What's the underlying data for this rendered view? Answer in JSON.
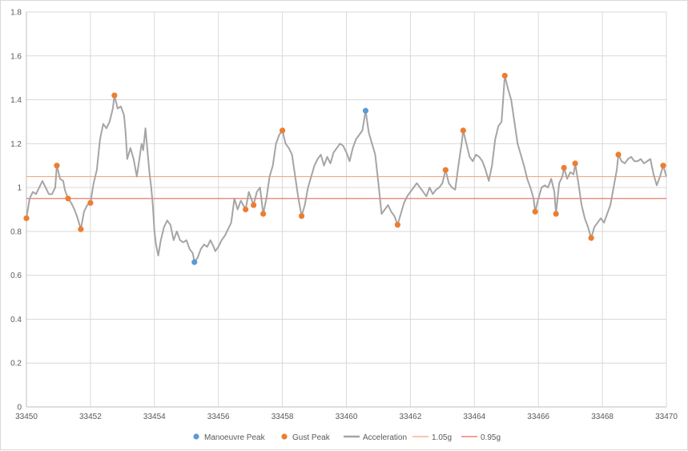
{
  "chart_data": {
    "type": "line",
    "xlim": [
      33450,
      33470
    ],
    "ylim": [
      0,
      1.8
    ],
    "x_ticks": [
      33450,
      33452,
      33454,
      33456,
      33458,
      33460,
      33462,
      33464,
      33466,
      33468,
      33470
    ],
    "x_tick_labels": [
      "33450",
      "33452",
      "33454",
      "33456",
      "33458",
      "33460",
      "33462",
      "33464",
      "33466",
      "33468",
      "33470"
    ],
    "y_ticks": [
      0,
      0.2,
      0.4,
      0.6,
      0.8,
      1,
      1.2,
      1.4,
      1.6,
      1.8
    ],
    "y_tick_labels": [
      "0",
      "0.2",
      "0.4",
      "0.6",
      "0.8",
      "1",
      "1.2",
      "1.4",
      "1.6",
      "1.8"
    ],
    "grid": true,
    "legend_position": "bottom",
    "series": [
      {
        "name": "Manoeuvre Peak",
        "kind": "scatter",
        "color": "#5b9bd5",
        "points": [
          [
            33455.25,
            0.66
          ],
          [
            33460.6,
            1.35
          ]
        ]
      },
      {
        "name": "Gust Peak",
        "kind": "scatter",
        "color": "#ed7d31",
        "points": [
          [
            33450,
            0.86
          ],
          [
            33450.95,
            1.1
          ],
          [
            33451.3,
            0.95
          ],
          [
            33451.7,
            0.81
          ],
          [
            33452.0,
            0.93
          ],
          [
            33452.75,
            1.42
          ],
          [
            33456.85,
            0.9
          ],
          [
            33457.1,
            0.92
          ],
          [
            33457.4,
            0.88
          ],
          [
            33458.0,
            1.26
          ],
          [
            33458.6,
            0.87
          ],
          [
            33461.6,
            0.83
          ],
          [
            33463.1,
            1.08
          ],
          [
            33463.65,
            1.26
          ],
          [
            33464.95,
            1.51
          ],
          [
            33465.9,
            0.89
          ],
          [
            33466.55,
            0.88
          ],
          [
            33466.8,
            1.09
          ],
          [
            33467.15,
            1.11
          ],
          [
            33467.65,
            0.77
          ],
          [
            33468.5,
            1.15
          ],
          [
            33469.9,
            1.1
          ]
        ]
      },
      {
        "name": "Acceleration",
        "kind": "line",
        "color": "#a5a5a5",
        "points": [
          [
            33450.0,
            0.86
          ],
          [
            33450.1,
            0.95
          ],
          [
            33450.2,
            0.98
          ],
          [
            33450.3,
            0.97
          ],
          [
            33450.4,
            1.0
          ],
          [
            33450.5,
            1.03
          ],
          [
            33450.6,
            1.0
          ],
          [
            33450.7,
            0.97
          ],
          [
            33450.8,
            0.97
          ],
          [
            33450.9,
            1.0
          ],
          [
            33450.95,
            1.1
          ],
          [
            33451.05,
            1.04
          ],
          [
            33451.15,
            1.03
          ],
          [
            33451.2,
            0.99
          ],
          [
            33451.3,
            0.95
          ],
          [
            33451.4,
            0.93
          ],
          [
            33451.5,
            0.9
          ],
          [
            33451.6,
            0.86
          ],
          [
            33451.7,
            0.81
          ],
          [
            33451.8,
            0.89
          ],
          [
            33451.9,
            0.92
          ],
          [
            33452.0,
            0.93
          ],
          [
            33452.1,
            1.02
          ],
          [
            33452.2,
            1.08
          ],
          [
            33452.3,
            1.22
          ],
          [
            33452.4,
            1.29
          ],
          [
            33452.5,
            1.27
          ],
          [
            33452.6,
            1.3
          ],
          [
            33452.7,
            1.36
          ],
          [
            33452.75,
            1.42
          ],
          [
            33452.85,
            1.36
          ],
          [
            33452.95,
            1.37
          ],
          [
            33453.05,
            1.33
          ],
          [
            33453.1,
            1.25
          ],
          [
            33453.15,
            1.13
          ],
          [
            33453.25,
            1.18
          ],
          [
            33453.35,
            1.13
          ],
          [
            33453.45,
            1.05
          ],
          [
            33453.55,
            1.15
          ],
          [
            33453.6,
            1.2
          ],
          [
            33453.65,
            1.17
          ],
          [
            33453.72,
            1.27
          ],
          [
            33453.8,
            1.14
          ],
          [
            33453.85,
            1.06
          ],
          [
            33453.9,
            1.0
          ],
          [
            33453.95,
            0.92
          ],
          [
            33454.0,
            0.8
          ],
          [
            33454.05,
            0.74
          ],
          [
            33454.12,
            0.69
          ],
          [
            33454.2,
            0.76
          ],
          [
            33454.3,
            0.82
          ],
          [
            33454.4,
            0.85
          ],
          [
            33454.5,
            0.83
          ],
          [
            33454.6,
            0.76
          ],
          [
            33454.7,
            0.8
          ],
          [
            33454.8,
            0.76
          ],
          [
            33454.9,
            0.75
          ],
          [
            33455.0,
            0.76
          ],
          [
            33455.1,
            0.72
          ],
          [
            33455.2,
            0.7
          ],
          [
            33455.25,
            0.66
          ],
          [
            33455.35,
            0.68
          ],
          [
            33455.45,
            0.72
          ],
          [
            33455.55,
            0.74
          ],
          [
            33455.65,
            0.73
          ],
          [
            33455.75,
            0.76
          ],
          [
            33455.85,
            0.73
          ],
          [
            33455.9,
            0.71
          ],
          [
            33456.0,
            0.73
          ],
          [
            33456.1,
            0.76
          ],
          [
            33456.2,
            0.78
          ],
          [
            33456.3,
            0.81
          ],
          [
            33456.4,
            0.84
          ],
          [
            33456.5,
            0.95
          ],
          [
            33456.6,
            0.9
          ],
          [
            33456.7,
            0.94
          ],
          [
            33456.85,
            0.9
          ],
          [
            33456.95,
            0.98
          ],
          [
            33457.1,
            0.92
          ],
          [
            33457.2,
            0.98
          ],
          [
            33457.3,
            1.0
          ],
          [
            33457.4,
            0.88
          ],
          [
            33457.5,
            0.95
          ],
          [
            33457.6,
            1.05
          ],
          [
            33457.7,
            1.1
          ],
          [
            33457.8,
            1.2
          ],
          [
            33457.9,
            1.24
          ],
          [
            33458.0,
            1.26
          ],
          [
            33458.1,
            1.2
          ],
          [
            33458.2,
            1.18
          ],
          [
            33458.3,
            1.15
          ],
          [
            33458.4,
            1.05
          ],
          [
            33458.5,
            0.95
          ],
          [
            33458.6,
            0.87
          ],
          [
            33458.7,
            0.92
          ],
          [
            33458.8,
            1.0
          ],
          [
            33458.9,
            1.05
          ],
          [
            33459.0,
            1.1
          ],
          [
            33459.1,
            1.13
          ],
          [
            33459.2,
            1.15
          ],
          [
            33459.3,
            1.1
          ],
          [
            33459.4,
            1.14
          ],
          [
            33459.5,
            1.11
          ],
          [
            33459.6,
            1.16
          ],
          [
            33459.7,
            1.18
          ],
          [
            33459.8,
            1.2
          ],
          [
            33459.9,
            1.19
          ],
          [
            33460.0,
            1.16
          ],
          [
            33460.1,
            1.12
          ],
          [
            33460.2,
            1.18
          ],
          [
            33460.3,
            1.22
          ],
          [
            33460.4,
            1.24
          ],
          [
            33460.5,
            1.26
          ],
          [
            33460.6,
            1.35
          ],
          [
            33460.7,
            1.25
          ],
          [
            33460.8,
            1.2
          ],
          [
            33460.9,
            1.15
          ],
          [
            33461.0,
            1.02
          ],
          [
            33461.1,
            0.88
          ],
          [
            33461.2,
            0.9
          ],
          [
            33461.3,
            0.92
          ],
          [
            33461.4,
            0.89
          ],
          [
            33461.5,
            0.87
          ],
          [
            33461.6,
            0.83
          ],
          [
            33461.7,
            0.88
          ],
          [
            33461.8,
            0.93
          ],
          [
            33461.9,
            0.96
          ],
          [
            33462.0,
            0.98
          ],
          [
            33462.1,
            1.0
          ],
          [
            33462.2,
            1.02
          ],
          [
            33462.3,
            1.0
          ],
          [
            33462.4,
            0.98
          ],
          [
            33462.5,
            0.96
          ],
          [
            33462.6,
            1.0
          ],
          [
            33462.7,
            0.97
          ],
          [
            33462.8,
            0.99
          ],
          [
            33462.9,
            1.0
          ],
          [
            33463.0,
            1.02
          ],
          [
            33463.1,
            1.08
          ],
          [
            33463.2,
            1.02
          ],
          [
            33463.3,
            1.0
          ],
          [
            33463.4,
            0.99
          ],
          [
            33463.5,
            1.1
          ],
          [
            33463.6,
            1.2
          ],
          [
            33463.65,
            1.26
          ],
          [
            33463.75,
            1.2
          ],
          [
            33463.85,
            1.14
          ],
          [
            33463.95,
            1.12
          ],
          [
            33464.05,
            1.15
          ],
          [
            33464.15,
            1.14
          ],
          [
            33464.25,
            1.12
          ],
          [
            33464.35,
            1.08
          ],
          [
            33464.45,
            1.03
          ],
          [
            33464.55,
            1.1
          ],
          [
            33464.65,
            1.22
          ],
          [
            33464.75,
            1.28
          ],
          [
            33464.85,
            1.3
          ],
          [
            33464.95,
            1.51
          ],
          [
            33465.05,
            1.45
          ],
          [
            33465.15,
            1.4
          ],
          [
            33465.25,
            1.3
          ],
          [
            33465.35,
            1.2
          ],
          [
            33465.45,
            1.15
          ],
          [
            33465.55,
            1.1
          ],
          [
            33465.65,
            1.04
          ],
          [
            33465.75,
            1.0
          ],
          [
            33465.85,
            0.95
          ],
          [
            33465.9,
            0.89
          ],
          [
            33466.0,
            0.95
          ],
          [
            33466.1,
            1.0
          ],
          [
            33466.2,
            1.01
          ],
          [
            33466.3,
            1.0
          ],
          [
            33466.4,
            1.04
          ],
          [
            33466.5,
            0.98
          ],
          [
            33466.55,
            0.88
          ],
          [
            33466.65,
            1.02
          ],
          [
            33466.75,
            1.05
          ],
          [
            33466.8,
            1.09
          ],
          [
            33466.9,
            1.04
          ],
          [
            33467.0,
            1.07
          ],
          [
            33467.1,
            1.06
          ],
          [
            33467.15,
            1.11
          ],
          [
            33467.25,
            1.02
          ],
          [
            33467.35,
            0.92
          ],
          [
            33467.45,
            0.86
          ],
          [
            33467.55,
            0.82
          ],
          [
            33467.65,
            0.77
          ],
          [
            33467.75,
            0.82
          ],
          [
            33467.85,
            0.84
          ],
          [
            33467.95,
            0.86
          ],
          [
            33468.05,
            0.84
          ],
          [
            33468.15,
            0.88
          ],
          [
            33468.25,
            0.92
          ],
          [
            33468.35,
            1.0
          ],
          [
            33468.45,
            1.08
          ],
          [
            33468.5,
            1.15
          ],
          [
            33468.6,
            1.12
          ],
          [
            33468.7,
            1.11
          ],
          [
            33468.8,
            1.13
          ],
          [
            33468.9,
            1.14
          ],
          [
            33469.0,
            1.12
          ],
          [
            33469.1,
            1.12
          ],
          [
            33469.2,
            1.13
          ],
          [
            33469.3,
            1.11
          ],
          [
            33469.4,
            1.12
          ],
          [
            33469.5,
            1.13
          ],
          [
            33469.6,
            1.06
          ],
          [
            33469.7,
            1.01
          ],
          [
            33469.8,
            1.05
          ],
          [
            33469.9,
            1.1
          ],
          [
            33470.0,
            1.05
          ]
        ]
      },
      {
        "name": "1.05g",
        "kind": "hline",
        "color": "#f4a582",
        "y": 1.05
      },
      {
        "name": "0.95g",
        "kind": "hline",
        "color": "#e36c5e",
        "y": 0.95
      }
    ]
  }
}
